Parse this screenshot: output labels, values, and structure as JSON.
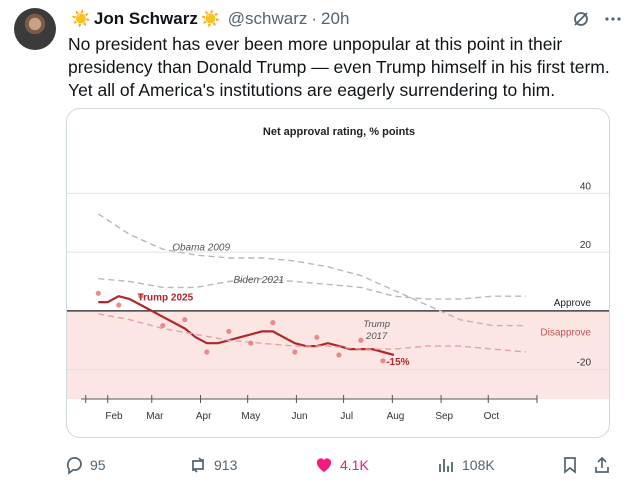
{
  "tweet": {
    "author_name": "Jon Schwarz",
    "handle": "@schwarz",
    "time": "20h",
    "text": "No president has ever been more unpopular at this point in their presidency than Donald Trump — even Trump himself in his first term. Yet all of America's institutions are eagerly surrendering to him.",
    "name_emoji": "☀️"
  },
  "actions": {
    "replies": "95",
    "reposts": "913",
    "likes": "4.1K",
    "views": "108K"
  },
  "icons": [
    "grok-icon",
    "more-icon",
    "reply-icon",
    "repost-icon",
    "heart-icon",
    "views-icon",
    "bookmark-icon",
    "share-icon"
  ],
  "colors": {
    "trump2025": "#b3262c",
    "disapprove_zone": "#fbe6e4",
    "like": "#f91880",
    "muted": "#536471",
    "sun": "#f4b400"
  },
  "chart_data": {
    "type": "line",
    "title": "Net approval rating, % points",
    "x_ticks": [
      "Feb",
      "Mar",
      "Apr",
      "May",
      "Jun",
      "Jul",
      "Aug",
      "Sep",
      "Oct"
    ],
    "y_ticks": [
      40,
      20,
      -20
    ],
    "ylim": [
      -30,
      50
    ],
    "zone_labels": {
      "approve": "Approve",
      "disapprove": "Disapprove"
    },
    "end_label": "-15%",
    "series": [
      {
        "name": "Trump 2025",
        "style": "solid",
        "x": [
          "2025-01-26",
          "2025-02-01",
          "2025-02-08",
          "2025-02-15",
          "2025-02-22",
          "2025-03-01",
          "2025-03-08",
          "2025-03-15",
          "2025-03-22",
          "2025-03-29",
          "2025-04-05",
          "2025-04-12",
          "2025-04-19",
          "2025-04-26",
          "2025-05-03",
          "2025-05-10",
          "2025-05-17",
          "2025-05-24",
          "2025-05-31",
          "2025-06-07",
          "2025-06-14",
          "2025-06-21",
          "2025-06-28",
          "2025-07-05",
          "2025-07-12",
          "2025-07-19",
          "2025-07-26",
          "2025-08-02"
        ],
        "y": [
          3,
          3,
          5,
          4,
          2,
          0,
          -2,
          -4,
          -6,
          -9,
          -11,
          -11,
          -10,
          -9,
          -8,
          -7,
          -7,
          -9,
          -11,
          -12,
          -12,
          -11,
          -12,
          -13,
          -13,
          -13,
          -14,
          -15
        ]
      },
      {
        "name": "Obama 2009",
        "style": "dashed",
        "x": [
          "2025-01-26",
          "2025-02-15",
          "2025-03-08",
          "2025-03-29",
          "2025-04-19",
          "2025-05-10",
          "2025-05-31",
          "2025-06-21",
          "2025-07-12",
          "2025-08-02",
          "2025-08-23",
          "2025-09-13",
          "2025-10-04",
          "2025-10-25"
        ],
        "y": [
          33,
          26,
          21,
          19,
          18,
          18,
          17,
          15,
          12,
          7,
          2,
          -3,
          -5,
          -5
        ]
      },
      {
        "name": "Biden 2021",
        "style": "dashed",
        "x": [
          "2025-01-26",
          "2025-02-15",
          "2025-03-08",
          "2025-03-29",
          "2025-04-19",
          "2025-05-10",
          "2025-05-31",
          "2025-06-21",
          "2025-07-12",
          "2025-08-02",
          "2025-08-23",
          "2025-09-13",
          "2025-10-04",
          "2025-10-25"
        ],
        "y": [
          11,
          10,
          8,
          8,
          10,
          11,
          10,
          9,
          8,
          5,
          4,
          4,
          5,
          5
        ]
      },
      {
        "name": "Trump 2017",
        "style": "dashed",
        "x": [
          "2025-01-26",
          "2025-02-15",
          "2025-03-08",
          "2025-03-29",
          "2025-04-19",
          "2025-05-10",
          "2025-05-31",
          "2025-06-21",
          "2025-07-12",
          "2025-08-02",
          "2025-08-23",
          "2025-09-13",
          "2025-10-04",
          "2025-10-25"
        ],
        "y": [
          -1,
          -3,
          -6,
          -8,
          -10,
          -11,
          -12,
          -12,
          -13,
          -13,
          -12,
          -12,
          -13,
          -14
        ]
      }
    ]
  }
}
